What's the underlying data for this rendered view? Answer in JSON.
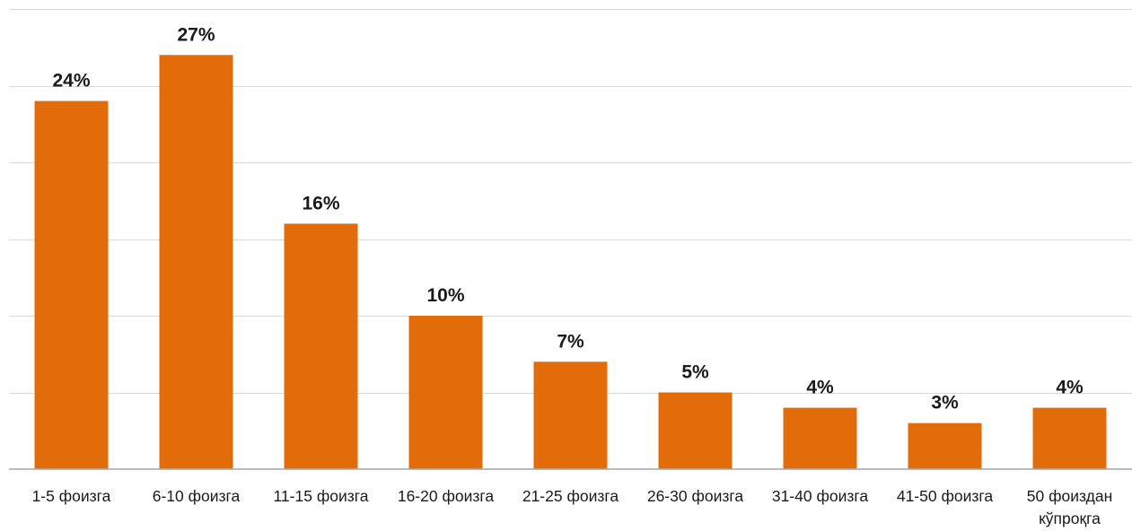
{
  "chart_data": {
    "type": "bar",
    "categories": [
      [
        "1-5 фоизга"
      ],
      [
        "6-10 фоизга"
      ],
      [
        "11-15 фоизга"
      ],
      [
        "16-20 фоизга"
      ],
      [
        "21-25 фоизга"
      ],
      [
        "26-30 фоизга"
      ],
      [
        "31-40 фоизга"
      ],
      [
        "41-50 фоизга"
      ],
      [
        "50 фоиздан",
        "кўпроқга"
      ]
    ],
    "values": [
      24,
      27,
      16,
      10,
      7,
      5,
      4,
      3,
      4
    ],
    "data_labels": [
      "24%",
      "27%",
      "16%",
      "10%",
      "7%",
      "5%",
      "4%",
      "3%",
      "4%"
    ],
    "ylim": [
      0,
      30
    ],
    "y_step": 5,
    "y_tick_labels_shown": false,
    "grid": true,
    "legend": "none",
    "colors": {
      "bar": "#E36C0A",
      "grid": "#D9D9D9",
      "axis": "#A6A6A6",
      "text": "#1A1A1A"
    }
  }
}
